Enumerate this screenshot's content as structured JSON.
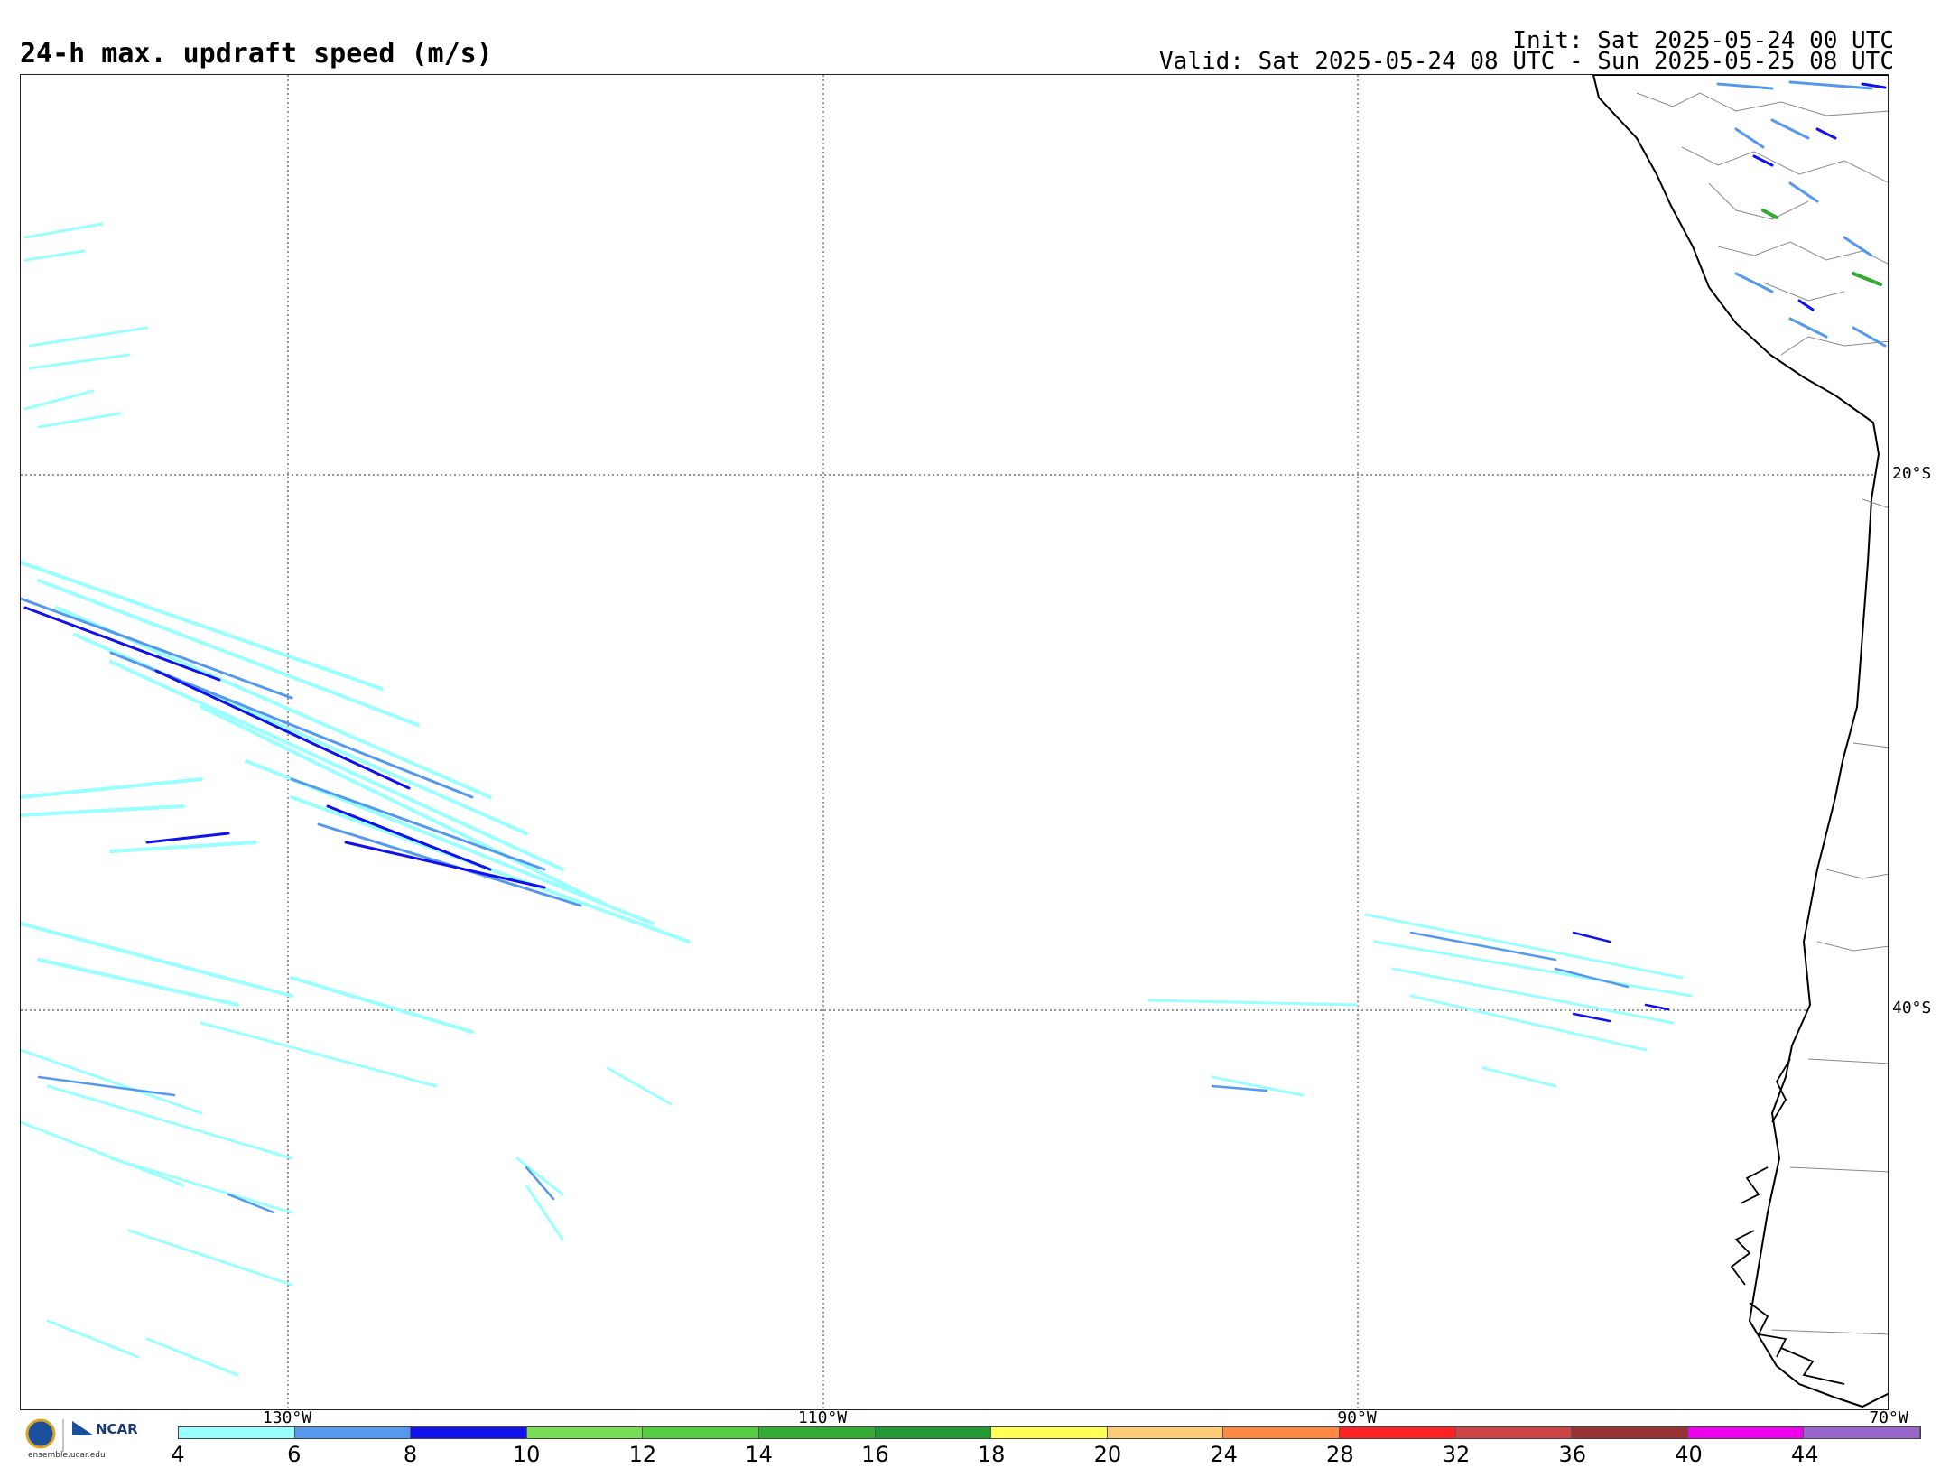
{
  "header": {
    "title": "24-h max. updraft speed (m/s)",
    "init": "Init: Sat 2025-05-24 00 UTC",
    "valid": "Valid: Sat 2025-05-24 08 UTC - Sun 2025-05-25 08 UTC"
  },
  "grid": {
    "lat_labels": [
      "20°S",
      "40°S"
    ],
    "lon_labels": [
      "130°W",
      "110°W",
      "90°W",
      "70°W"
    ]
  },
  "colorbar": {
    "ticks": [
      "4",
      "6",
      "8",
      "10",
      "12",
      "14",
      "16",
      "18",
      "20",
      "24",
      "28",
      "32",
      "36",
      "40",
      "44"
    ],
    "colors": [
      "#99ffff",
      "#5599ee",
      "#1111ee",
      "#77dd55",
      "#55cc44",
      "#33aa33",
      "#229933",
      "#ffff55",
      "#ffcc77",
      "#ff8844",
      "#ff2222",
      "#cc4444",
      "#993333",
      "#ee00ee",
      "#9966cc"
    ]
  },
  "logo": {
    "org": "NCAR",
    "url": "ensemble.ucar.edu"
  }
}
